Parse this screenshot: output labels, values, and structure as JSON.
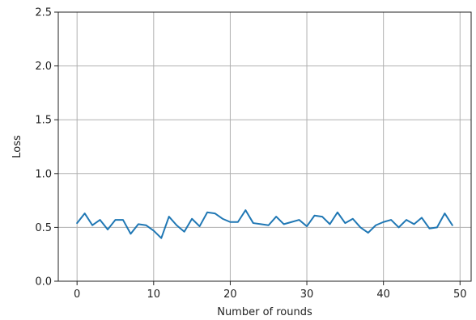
{
  "chart_data": {
    "type": "line",
    "xlabel": "Number of rounds",
    "ylabel": "Loss",
    "xlim": [
      -2.45,
      51.45
    ],
    "ylim": [
      0.0,
      2.5
    ],
    "xticks": [
      0,
      10,
      20,
      30,
      40,
      50
    ],
    "xtick_labels": [
      "0",
      "10",
      "20",
      "30",
      "40",
      "50"
    ],
    "yticks": [
      0.0,
      0.5,
      1.0,
      1.5,
      2.0,
      2.5
    ],
    "ytick_labels": [
      "0.0",
      "0.5",
      "1.0",
      "1.5",
      "2.0",
      "2.5"
    ],
    "grid": true,
    "legend": "none",
    "series": [
      {
        "color": "#1f77b4",
        "x": [
          0,
          1,
          2,
          3,
          4,
          5,
          6,
          7,
          8,
          9,
          10,
          11,
          12,
          13,
          14,
          15,
          16,
          17,
          18,
          19,
          20,
          21,
          22,
          23,
          24,
          25,
          26,
          27,
          28,
          29,
          30,
          31,
          32,
          33,
          34,
          35,
          36,
          37,
          38,
          39,
          40,
          41,
          42,
          43,
          44,
          45,
          46,
          47,
          48,
          49
        ],
        "y": [
          0.54,
          0.63,
          0.52,
          0.57,
          0.48,
          0.57,
          0.57,
          0.44,
          0.53,
          0.52,
          0.47,
          0.4,
          0.6,
          0.52,
          0.46,
          0.58,
          0.51,
          0.64,
          0.63,
          0.58,
          0.55,
          0.55,
          0.66,
          0.54,
          0.53,
          0.52,
          0.6,
          0.53,
          0.55,
          0.57,
          0.51,
          0.61,
          0.6,
          0.53,
          0.64,
          0.54,
          0.58,
          0.5,
          0.45,
          0.52,
          0.55,
          0.57,
          0.5,
          0.57,
          0.53,
          0.59,
          0.49,
          0.5,
          0.63,
          0.52
        ]
      }
    ]
  }
}
